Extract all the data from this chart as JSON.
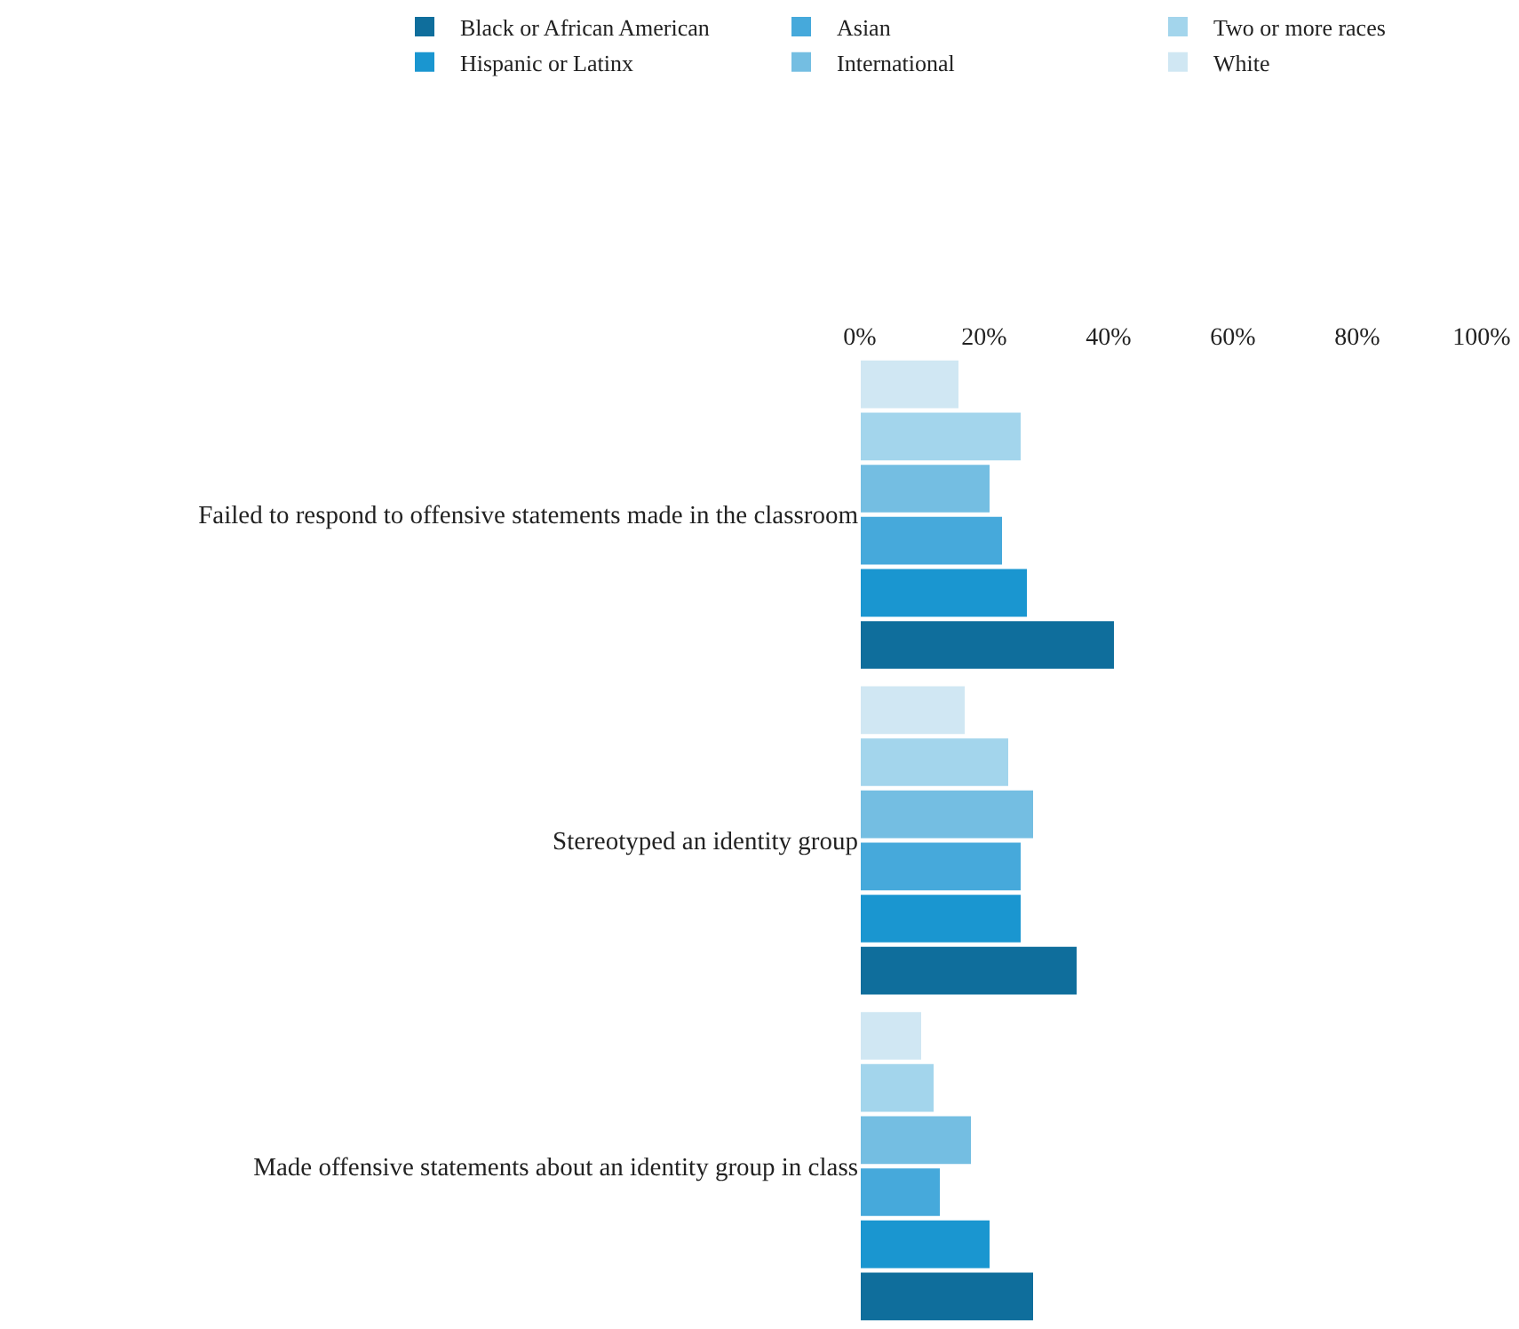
{
  "chart_data": {
    "type": "bar",
    "orientation": "horizontal",
    "categories": [
      "Failed to respond to offensive statements made in the classroom",
      "Stereotyped an identity group",
      "Made offensive statements about an identity group in class"
    ],
    "series": [
      {
        "name": "Black or African American",
        "color": "#0f6e9c",
        "values": [
          41,
          35,
          28
        ]
      },
      {
        "name": "Hispanic or Latinx",
        "color": "#1a96d0",
        "values": [
          27,
          26,
          21
        ]
      },
      {
        "name": "Asian",
        "color": "#46a9db",
        "values": [
          23,
          26,
          13
        ]
      },
      {
        "name": "International",
        "color": "#74bee2",
        "values": [
          21,
          28,
          18
        ]
      },
      {
        "name": "Two or more races",
        "color": "#a3d5ec",
        "values": [
          26,
          24,
          12
        ]
      },
      {
        "name": "White",
        "color": "#d0e7f3",
        "values": [
          16,
          17,
          10
        ]
      }
    ],
    "xlim": [
      0,
      100
    ],
    "xticks": [
      {
        "value": 0,
        "label": "0%"
      },
      {
        "value": 20,
        "label": "20%"
      },
      {
        "value": 40,
        "label": "40%"
      },
      {
        "value": 60,
        "label": "60%"
      },
      {
        "value": 80,
        "label": "80%"
      },
      {
        "value": 100,
        "label": "100%"
      }
    ],
    "grid": false,
    "legend": "top"
  }
}
